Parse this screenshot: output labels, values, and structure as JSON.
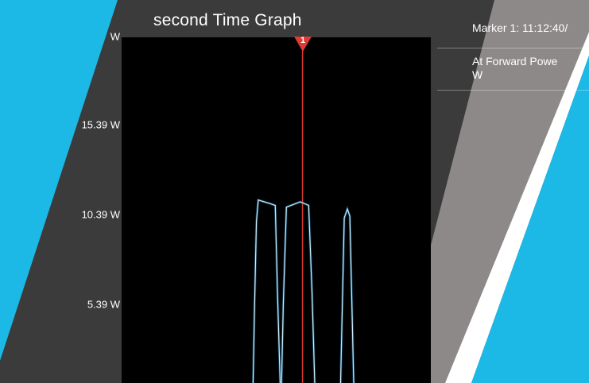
{
  "colors": {
    "accent_blue": "#1cb8e6",
    "panel_dark": "#3b3b3b",
    "stripe_gray": "#8c8988",
    "plot_bg": "#000000",
    "trace": "#6fc6ea",
    "marker_line": "#e03a35"
  },
  "graph": {
    "title": "second Time Graph",
    "unit_partial_label": "W",
    "y_ticks": [
      "15.39 W",
      "10.39 W",
      "5.39 W"
    ]
  },
  "marker": {
    "number": "1",
    "readout": "Marker 1: 11:12:40/",
    "measure_line1": "At Forward Powe",
    "measure_line2": "W"
  },
  "chart_data": {
    "type": "line",
    "y_ticks": [
      5.39,
      10.39,
      15.39
    ],
    "ylim": [
      0.8,
      20.5
    ],
    "xlim": [
      0,
      100
    ],
    "grid": false,
    "marker_x": 58.5,
    "series": [
      {
        "x": [
          0,
          42.5,
          43.0,
          43.6,
          44.2,
          48.0,
          49.7,
          50.4,
          51.3,
          51.7,
          52.3,
          53.3,
          57.8,
          60.5,
          61.6,
          62.5,
          63.3,
          70.8,
          71.4,
          72.0,
          73.0,
          73.8,
          74.4,
          75.1,
          76.0,
          100
        ],
        "y": [
          0.8,
          0.8,
          5.4,
          10.0,
          11.2,
          11.0,
          10.9,
          6.0,
          0.8,
          0.8,
          5.4,
          10.8,
          11.1,
          10.9,
          6.0,
          0.8,
          0.8,
          0.8,
          5.4,
          10.2,
          10.7,
          10.3,
          6.0,
          0.8,
          0.8,
          0.8
        ]
      }
    ]
  }
}
